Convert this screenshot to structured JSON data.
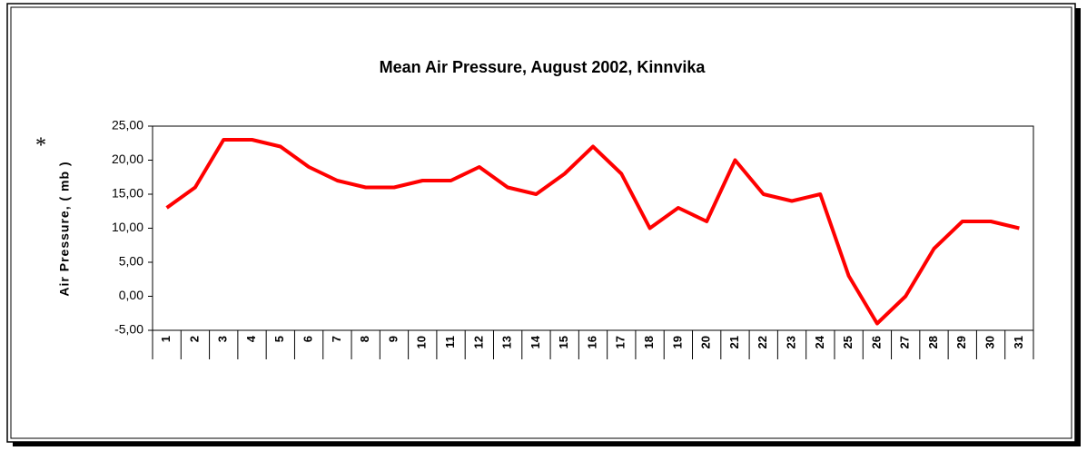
{
  "chart_data": {
    "type": "line",
    "title": "Mean Air Pressure,  August 2002, Kinnvika",
    "y_label": "Air Pressure, ( mb )",
    "annotation": "*",
    "categories": [
      "1",
      "2",
      "3",
      "4",
      "5",
      "6",
      "7",
      "8",
      "9",
      "10",
      "11",
      "12",
      "13",
      "14",
      "15",
      "16",
      "17",
      "18",
      "19",
      "20",
      "21",
      "22",
      "23",
      "24",
      "25",
      "26",
      "27",
      "28",
      "29",
      "30",
      "31"
    ],
    "series": [
      {
        "name": "Mean Air Pressure",
        "color": "#ff0000",
        "values": [
          13,
          16,
          23,
          23,
          22,
          19,
          17,
          16,
          16,
          17,
          17,
          19,
          16,
          15,
          18,
          22,
          18,
          10,
          13,
          11,
          20,
          15,
          14,
          15,
          3,
          -4,
          0,
          7,
          11,
          11,
          10
        ]
      }
    ],
    "ylim": [
      -5,
      25
    ],
    "yticks": [
      {
        "value": -5,
        "label": "-5,00"
      },
      {
        "value": 0,
        "label": "0,00"
      },
      {
        "value": 5,
        "label": "5,00"
      },
      {
        "value": 10,
        "label": "10,00"
      },
      {
        "value": 15,
        "label": "15,00"
      },
      {
        "value": 20,
        "label": "20,00"
      },
      {
        "value": 25,
        "label": "25,00"
      }
    ],
    "grid": false
  }
}
